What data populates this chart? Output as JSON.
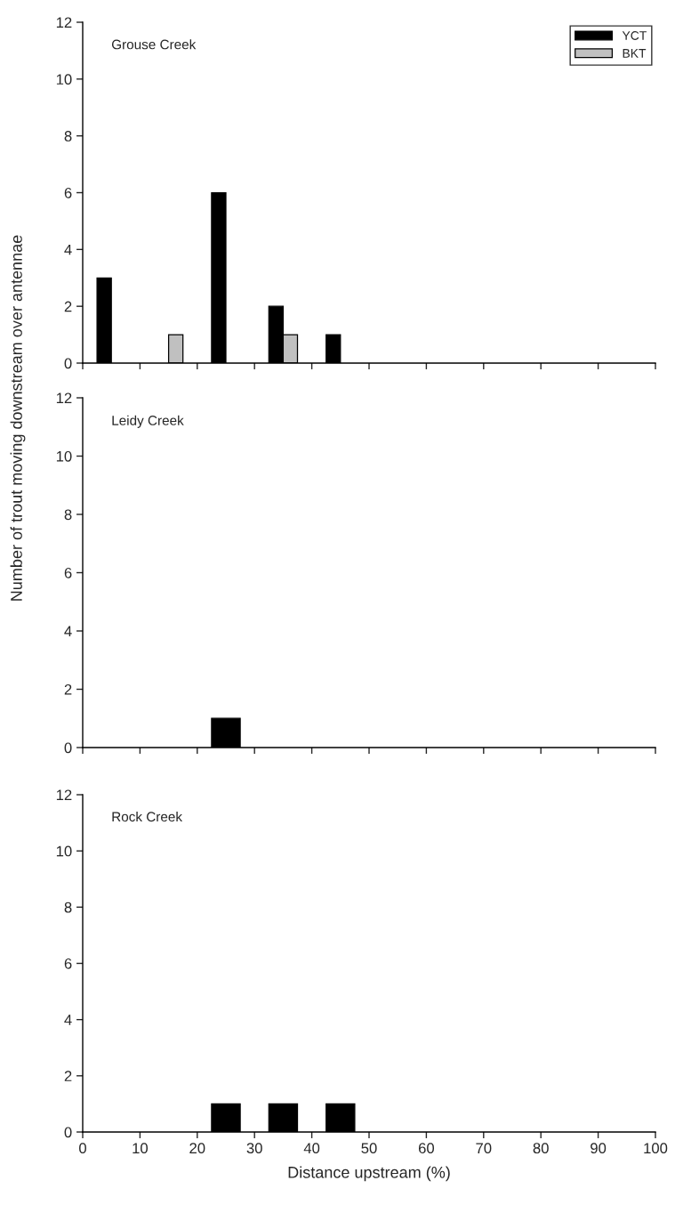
{
  "chart_data": [
    {
      "type": "bar",
      "title": "Grouse Creek",
      "x": [
        5,
        15,
        25,
        35,
        45,
        55,
        65,
        75,
        85,
        95
      ],
      "series": [
        {
          "name": "YCT",
          "color": "#000000",
          "values": [
            3,
            0,
            6,
            2,
            1,
            0,
            0,
            0,
            0,
            0
          ]
        },
        {
          "name": "BKT",
          "color": "#c0c0c0",
          "values": [
            0,
            1,
            0,
            1,
            0,
            0,
            0,
            0,
            0,
            0
          ]
        }
      ],
      "xlim": [
        0,
        100
      ],
      "xticks": [
        {
          "value": 0,
          "label": null
        },
        {
          "value": 10,
          "label": null
        },
        {
          "value": 20,
          "label": null
        },
        {
          "value": 30,
          "label": null
        },
        {
          "value": 40,
          "label": null
        },
        {
          "value": 50,
          "label": null
        },
        {
          "value": 60,
          "label": null
        },
        {
          "value": 70,
          "label": null
        },
        {
          "value": 80,
          "label": null
        },
        {
          "value": 90,
          "label": null
        },
        {
          "value": 100,
          "label": null
        }
      ],
      "ylim": [
        0,
        12
      ],
      "yticks": [
        0,
        2,
        4,
        6,
        8,
        10,
        12
      ],
      "tick_labels": "y",
      "legend": "top right"
    },
    {
      "type": "bar",
      "title": "Leidy Creek",
      "ylabel": "Number of trout moving downstream over antennae",
      "x": [
        5,
        15,
        25,
        35,
        45,
        55,
        65,
        75,
        85,
        95
      ],
      "series": [
        {
          "color": "#000000",
          "values": [
            0,
            0,
            1,
            0,
            0,
            0,
            0,
            0,
            0,
            0
          ]
        }
      ],
      "xlim": [
        0,
        100
      ],
      "xticks": [
        {
          "value": 0,
          "label": null
        },
        {
          "value": 10,
          "label": null
        },
        {
          "value": 20,
          "label": null
        },
        {
          "value": 30,
          "label": null
        },
        {
          "value": 40,
          "label": null
        },
        {
          "value": 50,
          "label": null
        },
        {
          "value": 60,
          "label": null
        },
        {
          "value": 70,
          "label": null
        },
        {
          "value": 80,
          "label": null
        },
        {
          "value": 90,
          "label": null
        },
        {
          "value": 100,
          "label": null
        }
      ],
      "ylim": [
        0,
        12
      ],
      "yticks": [
        0,
        2,
        4,
        6,
        8,
        10,
        12
      ],
      "tick_labels": "y"
    },
    {
      "type": "bar",
      "title": "Rock Creek",
      "xlabel": "Distance upstream (%)",
      "x": [
        5,
        15,
        25,
        35,
        45,
        55,
        65,
        75,
        85,
        95
      ],
      "series": [
        {
          "color": "#000000",
          "values": [
            0,
            0,
            1,
            1,
            1,
            0,
            0,
            0,
            0,
            0
          ]
        }
      ],
      "xlim": [
        0,
        100
      ],
      "xticks": [
        0,
        10,
        20,
        30,
        40,
        50,
        60,
        70,
        80,
        90,
        100
      ],
      "ylim": [
        0,
        12
      ],
      "yticks": [
        0,
        2,
        4,
        6,
        8,
        10,
        12
      ]
    }
  ]
}
